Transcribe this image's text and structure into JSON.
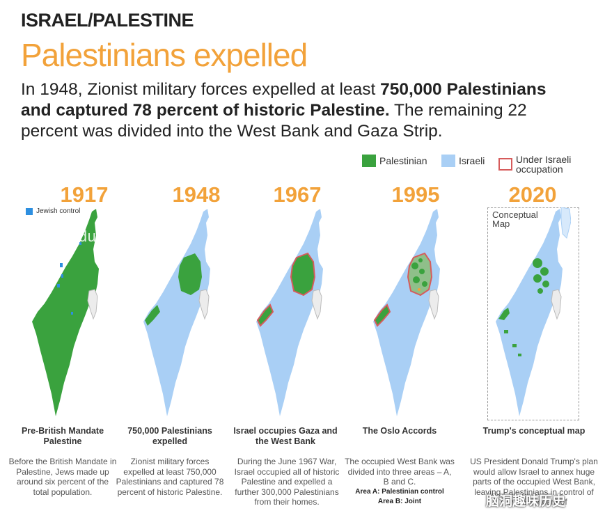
{
  "header": {
    "kicker": "ISRAEL/PALESTINE",
    "title": "Palestinians expelled",
    "lede_part1": "In 1948, Zionist military forces expelled at least ",
    "lede_bold1": "750,000 Palestinians and captured 78 percent of historic Palestine.",
    "lede_part2": " The remaining 22 percent was divided into the West Bank and Gaza Strip."
  },
  "legend": {
    "palestinian": "Palestinian",
    "israeli": "Israeli",
    "occupation": "Under Israeli occupation"
  },
  "colors": {
    "palestinian": "#3aa23e",
    "israeli": "#a9cff5",
    "occupation": "#d65b5b",
    "accent": "#f2a23a",
    "jewish": "#2d8fe0"
  },
  "panels": [
    {
      "year": "1917",
      "caption": "Pre-British Mandate Palestine",
      "desc": "Before the British Mandate in Palestine, Jews made up around six percent of the total population.",
      "extra_label": "Jewish control"
    },
    {
      "year": "1948",
      "caption": "750,000 Palestinians expelled",
      "desc": "Zionist military forces expelled at least 750,000 Palestinians and captured 78 percent of historic Palestine."
    },
    {
      "year": "1967",
      "caption": "Israel occupies Gaza and the West Bank",
      "desc": "During the June 1967 War, Israel occupied all of historic Palestine and expelled a further 300,000 Palestinians from their homes."
    },
    {
      "year": "1995",
      "caption": "The Oslo Accords",
      "desc": "The occupied West Bank was divided into three areas – A, B and C.",
      "sub1": "Area A: Palestinian control",
      "sub2": "Area B: Joint"
    },
    {
      "year": "2020",
      "caption": "Trump's conceptual map",
      "desc": "US President Donald Trump's plan would allow Israel to annex huge parts of the occupied West Bank, leaving Palestinians in control of only 15 percent of",
      "extra_label": "Conceptual Map"
    }
  ],
  "watermarks": {
    "site": "yiduoxiao.com",
    "wechat": "脑洞趣味历史"
  }
}
